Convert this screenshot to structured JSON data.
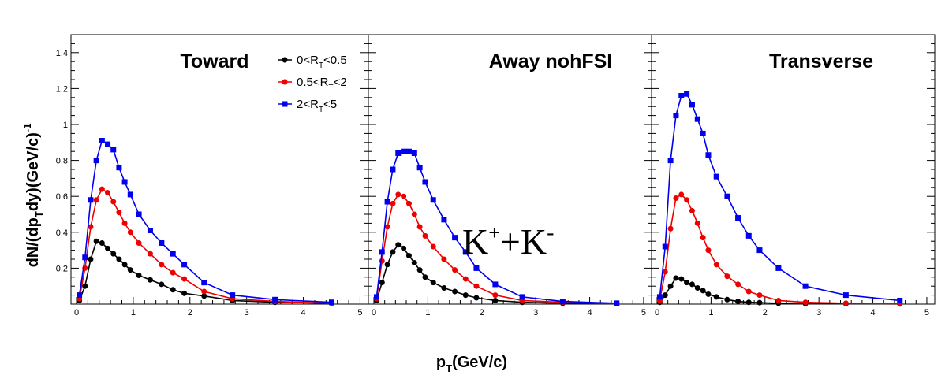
{
  "chart_data": {
    "type": "line",
    "panels": [
      {
        "title": "Toward",
        "series": [
          {
            "name_parts": [
              "0<R",
              "T",
              "<0.5"
            ],
            "color": "#000000",
            "marker": "circle",
            "x": [
              0.05,
              0.15,
              0.25,
              0.35,
              0.45,
              0.55,
              0.65,
              0.75,
              0.85,
              0.95,
              1.1,
              1.3,
              1.5,
              1.7,
              1.9,
              2.25,
              2.75,
              3.5,
              4.5
            ],
            "y": [
              0.02,
              0.1,
              0.25,
              0.35,
              0.34,
              0.31,
              0.28,
              0.25,
              0.22,
              0.19,
              0.16,
              0.135,
              0.11,
              0.08,
              0.06,
              0.045,
              0.02,
              0.01,
              0.005
            ]
          },
          {
            "name_parts": [
              "0.5<R",
              "T",
              "<2"
            ],
            "color": "#ee0000",
            "marker": "circle",
            "x": [
              0.05,
              0.15,
              0.25,
              0.35,
              0.45,
              0.55,
              0.65,
              0.75,
              0.85,
              0.95,
              1.1,
              1.3,
              1.5,
              1.7,
              1.9,
              2.25,
              2.75,
              3.5,
              4.5
            ],
            "y": [
              0.03,
              0.2,
              0.43,
              0.58,
              0.64,
              0.62,
              0.57,
              0.51,
              0.45,
              0.4,
              0.34,
              0.28,
              0.22,
              0.175,
              0.14,
              0.07,
              0.03,
              0.015,
              0.005
            ]
          },
          {
            "name_parts": [
              "2<R",
              "T",
              "<5"
            ],
            "color": "#0000ee",
            "marker": "square",
            "x": [
              0.05,
              0.15,
              0.25,
              0.35,
              0.45,
              0.55,
              0.65,
              0.75,
              0.85,
              0.95,
              1.1,
              1.3,
              1.5,
              1.7,
              1.9,
              2.25,
              2.75,
              3.5,
              4.5
            ],
            "y": [
              0.05,
              0.26,
              0.58,
              0.8,
              0.91,
              0.89,
              0.86,
              0.76,
              0.68,
              0.61,
              0.5,
              0.41,
              0.34,
              0.28,
              0.22,
              0.12,
              0.05,
              0.025,
              0.01
            ]
          }
        ]
      },
      {
        "title": "Away  nohFSI",
        "series": [
          {
            "name_parts": [
              "0<R",
              "T",
              "<0.5"
            ],
            "color": "#000000",
            "marker": "circle",
            "x": [
              0.05,
              0.15,
              0.25,
              0.35,
              0.45,
              0.55,
              0.65,
              0.75,
              0.85,
              0.95,
              1.1,
              1.3,
              1.5,
              1.7,
              1.9,
              2.25,
              2.75,
              3.5,
              4.5
            ],
            "y": [
              0.02,
              0.12,
              0.22,
              0.29,
              0.33,
              0.31,
              0.27,
              0.23,
              0.19,
              0.15,
              0.12,
              0.09,
              0.07,
              0.05,
              0.035,
              0.02,
              0.01,
              0.005,
              0.002
            ]
          },
          {
            "name_parts": [
              "0.5<R",
              "T",
              "<2"
            ],
            "color": "#ee0000",
            "marker": "circle",
            "x": [
              0.05,
              0.15,
              0.25,
              0.35,
              0.45,
              0.55,
              0.65,
              0.75,
              0.85,
              0.95,
              1.1,
              1.3,
              1.5,
              1.7,
              1.9,
              2.25,
              2.75,
              3.5,
              4.5
            ],
            "y": [
              0.03,
              0.24,
              0.43,
              0.56,
              0.61,
              0.6,
              0.56,
              0.5,
              0.43,
              0.38,
              0.32,
              0.25,
              0.19,
              0.14,
              0.1,
              0.05,
              0.02,
              0.01,
              0.003
            ]
          },
          {
            "name_parts": [
              "2<R",
              "T",
              "<5"
            ],
            "color": "#0000ee",
            "marker": "square",
            "x": [
              0.05,
              0.15,
              0.25,
              0.35,
              0.45,
              0.55,
              0.65,
              0.75,
              0.85,
              0.95,
              1.1,
              1.3,
              1.5,
              1.7,
              1.9,
              2.25,
              2.75,
              3.5,
              4.5
            ],
            "y": [
              0.04,
              0.29,
              0.57,
              0.75,
              0.84,
              0.85,
              0.85,
              0.84,
              0.76,
              0.68,
              0.58,
              0.47,
              0.37,
              0.29,
              0.2,
              0.11,
              0.04,
              0.015,
              0.005
            ]
          }
        ]
      },
      {
        "title": "Transverse",
        "series": [
          {
            "name_parts": [
              "0<R",
              "T",
              "<0.5"
            ],
            "color": "#000000",
            "marker": "circle",
            "x": [
              0.05,
              0.15,
              0.25,
              0.35,
              0.45,
              0.55,
              0.65,
              0.75,
              0.85,
              0.95,
              1.1,
              1.3,
              1.5,
              1.7,
              1.9,
              2.25,
              2.75,
              3.5,
              4.5
            ],
            "y": [
              0.01,
              0.05,
              0.1,
              0.145,
              0.14,
              0.12,
              0.11,
              0.09,
              0.075,
              0.055,
              0.04,
              0.025,
              0.015,
              0.01,
              0.008,
              0.005,
              0.003,
              0.002,
              0.001
            ]
          },
          {
            "name_parts": [
              "0.5<R",
              "T",
              "<2"
            ],
            "color": "#ee0000",
            "marker": "circle",
            "x": [
              0.05,
              0.15,
              0.25,
              0.35,
              0.45,
              0.55,
              0.65,
              0.75,
              0.85,
              0.95,
              1.1,
              1.3,
              1.5,
              1.7,
              1.9,
              2.25,
              2.75,
              3.5,
              4.5
            ],
            "y": [
              0.02,
              0.18,
              0.42,
              0.59,
              0.61,
              0.58,
              0.52,
              0.45,
              0.37,
              0.3,
              0.22,
              0.155,
              0.11,
              0.07,
              0.05,
              0.02,
              0.01,
              0.005,
              0.002
            ]
          },
          {
            "name_parts": [
              "2<R",
              "T",
              "<5"
            ],
            "color": "#0000ee",
            "marker": "square",
            "x": [
              0.05,
              0.15,
              0.25,
              0.35,
              0.45,
              0.55,
              0.65,
              0.75,
              0.85,
              0.95,
              1.1,
              1.3,
              1.5,
              1.7,
              1.9,
              2.25,
              2.75,
              3.5,
              4.5
            ],
            "y": [
              0.04,
              0.32,
              0.8,
              1.05,
              1.16,
              1.17,
              1.11,
              1.03,
              0.95,
              0.83,
              0.71,
              0.6,
              0.48,
              0.38,
              0.3,
              0.2,
              0.1,
              0.05,
              0.02
            ]
          }
        ]
      }
    ],
    "xlabel_parts": [
      "p",
      "T",
      "(GeV/c)"
    ],
    "ylabel_parts": [
      "dN/(dp",
      "T",
      "dy)(GeV/c)",
      "-1"
    ],
    "annotation_parts": [
      "K",
      "+",
      "+K",
      "-"
    ],
    "xlim": [
      -0.1,
      5.0
    ],
    "ylim": [
      0.0,
      1.5
    ],
    "xticks": [
      0,
      1,
      2,
      3,
      4,
      5
    ],
    "xtick_labels": [
      "0",
      "1",
      "2",
      "3",
      "4",
      "5"
    ],
    "yticks": [
      0.2,
      0.4,
      0.6,
      0.8,
      1.0,
      1.2,
      1.4
    ],
    "ytick_labels": [
      "0.2",
      "0.4",
      "0.6",
      "0.8",
      "1",
      "1.2",
      "1.4"
    ],
    "grid": false,
    "legend_position": "top-right of first panel"
  }
}
